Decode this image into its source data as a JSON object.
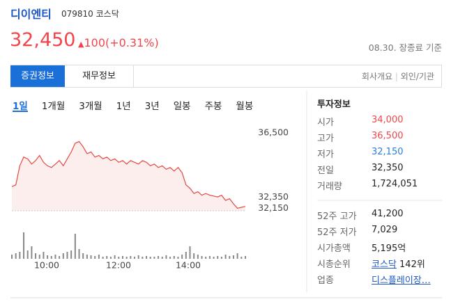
{
  "header": {
    "name": "디이엔티",
    "code": "079810",
    "market": "코스닥",
    "price": "32,450",
    "change": "100(+0.31%)",
    "price_color": "#f2444b",
    "status": "08.30. 장종료 기준"
  },
  "tabs": [
    "증권정보",
    "재무정보"
  ],
  "links": [
    "회사개요",
    "외인/기관"
  ],
  "periods": [
    "1일",
    "1개월",
    "3개월",
    "1년",
    "3년",
    "일봉",
    "주봉",
    "월봉"
  ],
  "chart_data": {
    "type": "line",
    "color": "#e8463f",
    "fill": "#fdeeee",
    "values": [
      33400,
      33500,
      34600,
      35100,
      35000,
      34700,
      34900,
      35200,
      34800,
      34600,
      34500,
      34700,
      34900,
      34600,
      35000,
      35400,
      35900,
      36000,
      35700,
      35300,
      35400,
      35100,
      35200,
      35000,
      35100,
      34900,
      35000,
      34800,
      34900,
      34700,
      34900,
      34800,
      34700,
      34900,
      34800,
      34600,
      34700,
      34500,
      34600,
      34400,
      34500,
      34300,
      34500,
      34200,
      33500,
      33300,
      33000,
      33100,
      32900,
      33000,
      32900,
      32850,
      32800,
      32900,
      32600,
      32700,
      32400,
      32150,
      32200,
      32250
    ],
    "volume": [
      6,
      8,
      10,
      38,
      12,
      18,
      8,
      6,
      10,
      5,
      4,
      6,
      4,
      8,
      10,
      12,
      36,
      14,
      8,
      6,
      5,
      4,
      6,
      3,
      4,
      3,
      5,
      3,
      4,
      3,
      4,
      3,
      5,
      3,
      4,
      3,
      3,
      4,
      3,
      5,
      3,
      4,
      3,
      6,
      10,
      18,
      8,
      6,
      4,
      3,
      4,
      3,
      4,
      3,
      6,
      4,
      5,
      8,
      3,
      4
    ],
    "volume_color": "#888888",
    "ylim": [
      32000,
      36500
    ],
    "yticks": [
      {
        "value": 36500,
        "label": "36,500"
      },
      {
        "value": 32350,
        "label": "32,350"
      },
      {
        "value": 32150,
        "label": "32,150"
      }
    ],
    "xticks": [
      "10:00",
      "12:00",
      "14:00"
    ]
  },
  "info": {
    "title": "투자정보",
    "rows": [
      {
        "label": "시가",
        "value": "34,000",
        "color": "#f2444b"
      },
      {
        "label": "고가",
        "value": "36,500",
        "color": "#f2444b"
      },
      {
        "label": "저가",
        "value": "32,150",
        "color": "#2a7ddc"
      },
      {
        "label": "전일",
        "value": "32,350"
      },
      {
        "label": "거래량",
        "value": "1,724,051"
      }
    ],
    "rows2": [
      {
        "label": "52주 고가",
        "value": "41,200"
      },
      {
        "label": "52주 저가",
        "value": "7,029"
      },
      {
        "label": "시가총액",
        "value": "5,195억"
      },
      {
        "label": "시총순위",
        "link": "코스닥",
        "value": "142위"
      },
      {
        "label": "업종",
        "link": "디스플레이장…"
      }
    ]
  }
}
